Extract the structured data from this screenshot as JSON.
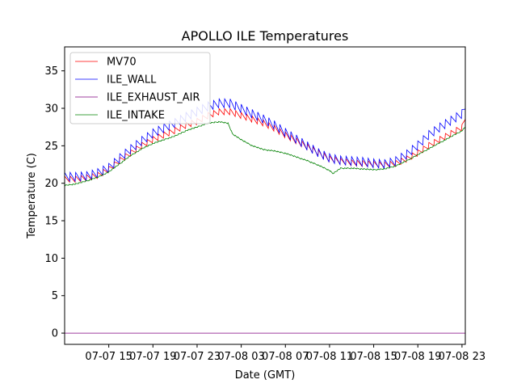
{
  "chart_data": {
    "type": "line",
    "title": "APOLLO ILE Temperatures",
    "xlabel": "Date (GMT)",
    "ylabel": "Temperature (C)",
    "x_unit": "hours since 07-07 00:00 GMT",
    "xlim": [
      11.0,
      47.3
    ],
    "ylim": [
      -1.5,
      38.2
    ],
    "yticks": [
      0,
      5,
      10,
      15,
      20,
      25,
      30,
      35
    ],
    "ytick_labels": [
      "0",
      "5",
      "10",
      "15",
      "20",
      "25",
      "30",
      "35"
    ],
    "xticks": [
      15,
      19,
      23,
      27,
      31,
      35,
      39,
      43,
      47
    ],
    "xtick_labels": [
      "07-07 15",
      "07-07 19",
      "07-07 23",
      "07-08 03",
      "07-08 07",
      "07-08 11",
      "07-08 15",
      "07-08 19",
      "07-08 23"
    ],
    "legend_position": "upper-left",
    "series": [
      {
        "name": "MV70",
        "color": "#ff0000",
        "x": [
          11.0,
          12.0,
          13.0,
          14.0,
          15.0,
          16.0,
          17.0,
          18.0,
          19.0,
          20.0,
          21.0,
          22.0,
          23.0,
          24.0,
          25.0,
          26.0,
          27.0,
          28.0,
          29.0,
          30.0,
          31.0,
          32.0,
          33.0,
          34.0,
          35.0,
          36.0,
          37.0,
          38.0,
          39.0,
          40.0,
          41.0,
          42.0,
          43.0,
          44.0,
          45.0,
          46.0,
          47.0,
          47.3
        ],
        "values": [
          20.5,
          20.5,
          20.7,
          21.0,
          21.8,
          23.0,
          24.0,
          25.0,
          25.8,
          26.4,
          27.0,
          27.7,
          28.2,
          29.0,
          29.5,
          29.5,
          29.0,
          28.5,
          28.0,
          27.3,
          26.4,
          25.6,
          24.8,
          24.0,
          23.2,
          22.9,
          22.7,
          22.6,
          22.5,
          22.4,
          22.6,
          23.2,
          24.0,
          25.0,
          25.8,
          26.6,
          27.4,
          28.6
        ]
      },
      {
        "name": "ILE_WALL",
        "color": "#0000ff",
        "x": [
          11.0,
          12.0,
          13.0,
          14.0,
          15.0,
          16.0,
          17.0,
          18.0,
          19.0,
          20.0,
          21.0,
          22.0,
          23.0,
          24.0,
          25.0,
          26.0,
          27.0,
          28.0,
          29.0,
          30.0,
          31.0,
          32.0,
          33.0,
          34.0,
          35.0,
          36.0,
          37.0,
          38.0,
          39.0,
          40.0,
          41.0,
          42.0,
          43.0,
          44.0,
          45.0,
          46.0,
          47.0,
          47.3
        ],
        "values": [
          20.8,
          20.8,
          20.9,
          21.3,
          22.0,
          23.3,
          24.5,
          25.6,
          26.6,
          27.3,
          28.0,
          28.8,
          29.5,
          30.2,
          30.6,
          30.6,
          29.9,
          29.2,
          28.5,
          27.7,
          26.7,
          25.8,
          24.9,
          24.0,
          23.3,
          23.0,
          22.9,
          22.8,
          22.6,
          22.5,
          22.9,
          23.8,
          25.0,
          26.4,
          27.4,
          28.3,
          29.2,
          30.0
        ]
      },
      {
        "name": "ILE_EXHAUST_AIR",
        "color": "#800080",
        "x": [
          11.0,
          47.3
        ],
        "values": [
          0.0,
          0.0
        ]
      },
      {
        "name": "ILE_INTAKE",
        "color": "#008000",
        "x": [
          11.0,
          12.0,
          13.0,
          14.0,
          15.0,
          16.0,
          17.0,
          18.0,
          19.0,
          20.0,
          21.0,
          22.0,
          23.0,
          24.0,
          25.0,
          25.8,
          26.2,
          27.0,
          28.0,
          29.0,
          30.0,
          31.0,
          32.0,
          33.0,
          34.0,
          35.0,
          35.3,
          36.0,
          37.0,
          38.0,
          39.0,
          40.0,
          41.0,
          42.0,
          43.0,
          44.0,
          45.0,
          46.0,
          47.0,
          47.3
        ],
        "values": [
          19.7,
          19.9,
          20.3,
          20.8,
          21.5,
          22.6,
          23.7,
          24.6,
          25.3,
          25.8,
          26.3,
          27.0,
          27.5,
          28.0,
          28.2,
          28.0,
          26.6,
          25.8,
          25.0,
          24.5,
          24.3,
          24.0,
          23.5,
          23.0,
          22.4,
          21.7,
          21.3,
          22.0,
          22.0,
          21.9,
          21.8,
          21.9,
          22.3,
          23.0,
          23.8,
          24.6,
          25.4,
          26.2,
          27.0,
          27.5
        ]
      }
    ]
  }
}
